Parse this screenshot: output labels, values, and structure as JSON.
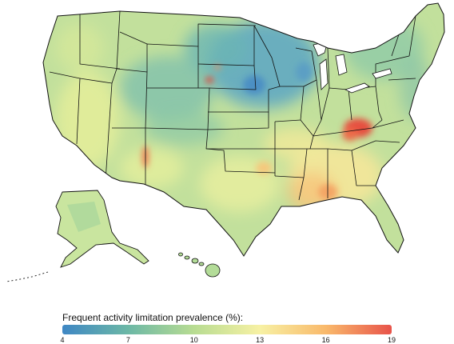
{
  "legend": {
    "title": "Frequent activity limitation prevalence (%):",
    "min": 4,
    "max": 19,
    "ticks": [
      "4",
      "7",
      "10",
      "13",
      "16",
      "19"
    ],
    "tick_values": [
      4,
      7,
      10,
      13,
      16,
      19
    ],
    "colors": [
      "#3f87c4",
      "#6cb8a6",
      "#b8dc92",
      "#f7f1a4",
      "#f9b96b",
      "#e8534a"
    ]
  },
  "map": {
    "land_fill": "#c2e09c",
    "low_color": "#5aa9c4",
    "high_color": "#e2463f",
    "border_color": "#111111"
  }
}
